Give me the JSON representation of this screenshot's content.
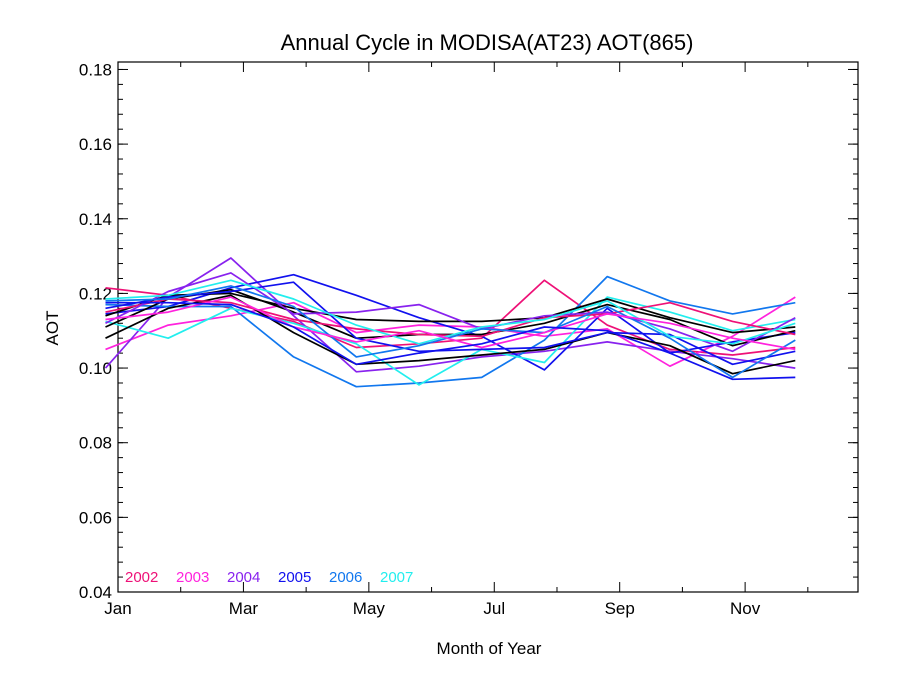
{
  "chart_data": {
    "type": "line",
    "title": "Annual Cycle in MODISA(AT23) AOT(865)",
    "xlabel": "Month of Year",
    "ylabel": "AOT",
    "xlim": [
      1,
      12.8
    ],
    "ylim": [
      0.04,
      0.182
    ],
    "x_ticks": [
      {
        "value": 1,
        "label": "Jan"
      },
      {
        "value": 3,
        "label": "Mar"
      },
      {
        "value": 5,
        "label": "May"
      },
      {
        "value": 7,
        "label": "Jul"
      },
      {
        "value": 9,
        "label": "Sep"
      },
      {
        "value": 11,
        "label": "Nov"
      }
    ],
    "y_ticks": [
      {
        "value": 0.04,
        "label": "0.04"
      },
      {
        "value": 0.06,
        "label": "0.06"
      },
      {
        "value": 0.08,
        "label": "0.08"
      },
      {
        "value": 0.1,
        "label": "0.10"
      },
      {
        "value": 0.12,
        "label": "0.12"
      },
      {
        "value": 0.14,
        "label": "0.14"
      },
      {
        "value": 0.16,
        "label": "0.16"
      },
      {
        "value": 0.18,
        "label": "0.18"
      }
    ],
    "grid": false,
    "legend_position": "bottom-left",
    "x": [
      0.8,
      1.8,
      2.8,
      3.8,
      4.8,
      5.8,
      6.8,
      7.8,
      8.8,
      9.8,
      10.8,
      11.8
    ],
    "series": [
      {
        "name": "2002",
        "color": "#ee1177",
        "values": [
          0.1215,
          0.1195,
          0.116,
          0.1125,
          0.1055,
          0.1065,
          0.108,
          0.1235,
          0.1115,
          0.105,
          0.1035,
          0.1055
        ]
      },
      {
        "name": "2003",
        "color": "#ff22dd",
        "values": [
          0.105,
          0.1115,
          0.114,
          0.1175,
          0.1095,
          0.1115,
          0.111,
          0.1085,
          0.1105,
          0.1005,
          0.1085,
          0.119
        ]
      },
      {
        "name": "2004",
        "color": "#8822ee",
        "values": [
          0.1,
          0.119,
          0.1295,
          0.114,
          0.099,
          0.1005,
          0.103,
          0.1045,
          0.107,
          0.1045,
          0.1025,
          0.1
        ]
      },
      {
        "name": "2005",
        "color": "#1111ee",
        "values": [
          0.1145,
          0.1165,
          0.1215,
          0.125,
          0.1195,
          0.1135,
          0.1085,
          0.0995,
          0.116,
          0.104,
          0.107,
          0.1095
        ]
      },
      {
        "name": "2006",
        "color": "#1177ee",
        "values": [
          0.117,
          0.1165,
          0.1165,
          0.103,
          0.095,
          0.096,
          0.0975,
          0.1075,
          0.1245,
          0.118,
          0.1145,
          0.1175
        ]
      },
      {
        "name": "2007",
        "color": "#22eeee",
        "values": [
          0.1125,
          0.108,
          0.116,
          0.112,
          0.1065,
          0.0955,
          0.105,
          0.1015,
          0.119,
          0.115,
          0.11,
          0.113
        ]
      },
      {
        "color": "#000000",
        "values": [
          0.108,
          0.116,
          0.1195,
          0.1095,
          0.101,
          0.102,
          0.1035,
          0.105,
          0.1095,
          0.106,
          0.0985,
          0.102
        ]
      },
      {
        "color": "#000000",
        "values": [
          0.111,
          0.1185,
          0.121,
          0.115,
          0.108,
          0.109,
          0.109,
          0.112,
          0.117,
          0.113,
          0.106,
          0.11
        ]
      },
      {
        "color": "#000000",
        "values": [
          0.114,
          0.1195,
          0.12,
          0.116,
          0.113,
          0.1125,
          0.1125,
          0.1135,
          0.1185,
          0.1135,
          0.1095,
          0.111
        ]
      },
      {
        "color": "#ee1177",
        "values": [
          0.115,
          0.1185,
          0.1175,
          0.113,
          0.1105,
          0.109,
          0.1085,
          0.1135,
          0.1145,
          0.1175,
          0.1125,
          0.109
        ]
      },
      {
        "color": "#8822ee",
        "values": [
          0.112,
          0.1205,
          0.1255,
          0.1145,
          0.115,
          0.117,
          0.1105,
          0.114,
          0.115,
          0.1105,
          0.1045,
          0.1135
        ]
      },
      {
        "color": "#1111ee",
        "values": [
          0.116,
          0.119,
          0.1205,
          0.123,
          0.108,
          0.1045,
          0.105,
          0.1055,
          0.1095,
          0.109,
          0.101,
          0.1045
        ]
      },
      {
        "color": "#1177ee",
        "values": [
          0.118,
          0.1185,
          0.122,
          0.1165,
          0.103,
          0.106,
          0.1105,
          0.1095,
          0.1165,
          0.108,
          0.0975,
          0.1075
        ]
      },
      {
        "color": "#22eeee",
        "values": [
          0.1185,
          0.1195,
          0.1235,
          0.1185,
          0.1115,
          0.1065,
          0.111,
          0.113,
          0.118,
          0.1085,
          0.1065,
          0.112
        ]
      },
      {
        "color": "#ff22dd",
        "values": [
          0.113,
          0.115,
          0.119,
          0.111,
          0.107,
          0.11,
          0.1055,
          0.1095,
          0.1145,
          0.112,
          0.108,
          0.105
        ]
      },
      {
        "color": "#1111ee",
        "values": [
          0.1175,
          0.1175,
          0.117,
          0.111,
          0.101,
          0.104,
          0.1065,
          0.111,
          0.11,
          0.104,
          0.097,
          0.0975
        ]
      }
    ]
  }
}
